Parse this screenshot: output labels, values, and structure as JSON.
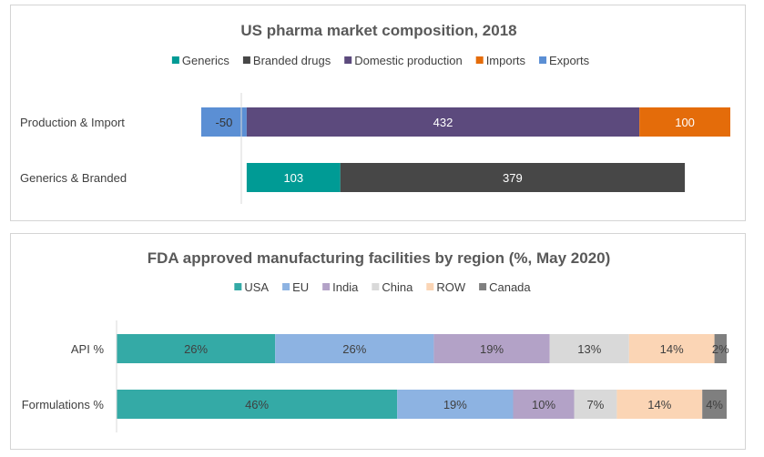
{
  "chart_data": [
    {
      "type": "bar",
      "orientation": "horizontal",
      "stacked": true,
      "title": "US pharma market composition, 2018",
      "legend_position": "top",
      "legend": [
        {
          "name": "Generics",
          "color": "#009b95"
        },
        {
          "name": "Branded drugs",
          "color": "#474747"
        },
        {
          "name": "Domestic production",
          "color": "#5c4a7d"
        },
        {
          "name": "Imports",
          "color": "#e46c0a"
        },
        {
          "name": "Exports",
          "color": "#5b8fd4"
        }
      ],
      "categories": [
        "Production & Import",
        "Generics & Branded"
      ],
      "xlim": [
        -60,
        532
      ],
      "rows": [
        {
          "category": "Production & Import",
          "segments": [
            {
              "series": "Exports",
              "value": -50,
              "label": "-50",
              "color": "#5b8fd4",
              "text_color": "#333333"
            },
            {
              "series": "Domestic production",
              "value": 432,
              "label": "432",
              "color": "#5c4a7d",
              "text_color": "#ffffff"
            },
            {
              "series": "Imports",
              "value": 100,
              "label": "100",
              "color": "#e46c0a",
              "text_color": "#ffffff"
            }
          ]
        },
        {
          "category": "Generics & Branded",
          "segments": [
            {
              "series": "Generics",
              "value": 103,
              "label": "103",
              "color": "#009b95",
              "text_color": "#ffffff"
            },
            {
              "series": "Branded drugs",
              "value": 379,
              "label": "379",
              "color": "#474747",
              "text_color": "#ffffff"
            }
          ]
        }
      ]
    },
    {
      "type": "bar",
      "orientation": "horizontal",
      "stacked": true,
      "percent": true,
      "title": "FDA approved manufacturing facilities by region (%, May 2020)",
      "legend_position": "top",
      "legend": [
        {
          "name": "USA",
          "color": "#34aaa6"
        },
        {
          "name": "EU",
          "color": "#8db3e2"
        },
        {
          "name": "India",
          "color": "#b3a2c7"
        },
        {
          "name": "China",
          "color": "#d9d9d9"
        },
        {
          "name": "ROW",
          "color": "#fbd5b5"
        },
        {
          "name": "Canada",
          "color": "#7f7f7f"
        }
      ],
      "categories": [
        "API %",
        "Formulations %"
      ],
      "xlim": [
        0,
        100
      ],
      "rows": [
        {
          "category": "API %",
          "segments": [
            {
              "series": "USA",
              "value": 26,
              "label": "26%",
              "color": "#34aaa6",
              "text_color": "#404040"
            },
            {
              "series": "EU",
              "value": 26,
              "label": "26%",
              "color": "#8db3e2",
              "text_color": "#404040"
            },
            {
              "series": "India",
              "value": 19,
              "label": "19%",
              "color": "#b3a2c7",
              "text_color": "#404040"
            },
            {
              "series": "China",
              "value": 13,
              "label": "13%",
              "color": "#d9d9d9",
              "text_color": "#404040"
            },
            {
              "series": "ROW",
              "value": 14,
              "label": "14%",
              "color": "#fbd5b5",
              "text_color": "#404040"
            },
            {
              "series": "Canada",
              "value": 2,
              "label": "2%",
              "color": "#7f7f7f",
              "text_color": "#404040"
            }
          ]
        },
        {
          "category": "Formulations %",
          "segments": [
            {
              "series": "USA",
              "value": 46,
              "label": "46%",
              "color": "#34aaa6",
              "text_color": "#404040"
            },
            {
              "series": "EU",
              "value": 19,
              "label": "19%",
              "color": "#8db3e2",
              "text_color": "#404040"
            },
            {
              "series": "India",
              "value": 10,
              "label": "10%",
              "color": "#b3a2c7",
              "text_color": "#404040"
            },
            {
              "series": "China",
              "value": 7,
              "label": "7%",
              "color": "#d9d9d9",
              "text_color": "#404040"
            },
            {
              "series": "ROW",
              "value": 14,
              "label": "14%",
              "color": "#fbd5b5",
              "text_color": "#404040"
            },
            {
              "series": "Canada",
              "value": 4,
              "label": "4%",
              "color": "#7f7f7f",
              "text_color": "#404040"
            }
          ]
        }
      ]
    }
  ]
}
